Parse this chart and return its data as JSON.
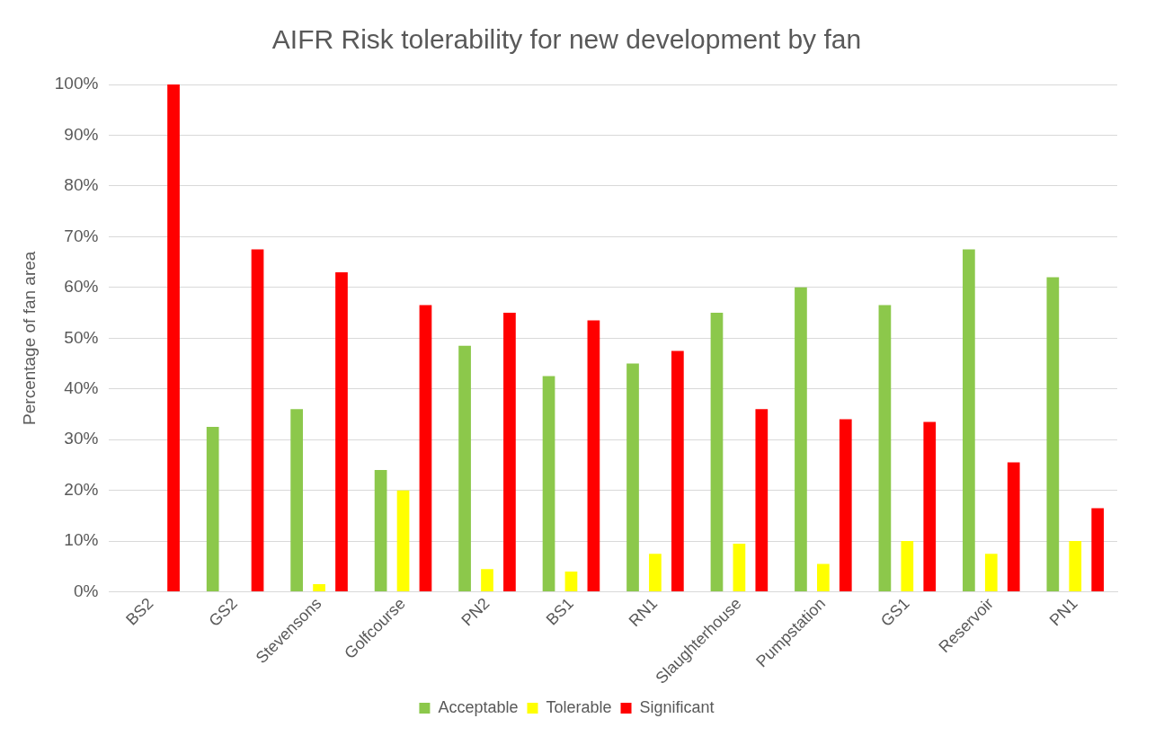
{
  "chart_data": {
    "type": "bar",
    "title": "AIFR Risk tolerability for new development by fan",
    "ylabel": "Percentage of fan area",
    "categories": [
      "BS2",
      "GS2",
      "Stevensons",
      "Golfcourse",
      "PN2",
      "BS1",
      "RN1",
      "Slaughterhouse",
      "Pumpstation",
      "GS1",
      "Reservoir",
      "PN1"
    ],
    "series": [
      {
        "name": "Acceptable",
        "color": "#8cc84b",
        "values": [
          0,
          32.5,
          36,
          24,
          48.5,
          42.5,
          45,
          55,
          60,
          56.5,
          67.5,
          62
        ]
      },
      {
        "name": "Tolerable",
        "color": "#ffff00",
        "values": [
          0,
          0,
          1.5,
          20,
          4.5,
          4,
          7.5,
          9.5,
          5.5,
          10,
          7.5,
          10
        ]
      },
      {
        "name": "Significant",
        "color": "#ff0000",
        "values": [
          100,
          67.5,
          63,
          56.5,
          55,
          53.5,
          47.5,
          36,
          34,
          33.5,
          25.5,
          16.5
        ]
      }
    ],
    "ylim": [
      0,
      100
    ],
    "yticks": [
      {
        "value": 0,
        "label": "0%"
      },
      {
        "value": 10,
        "label": "10%"
      },
      {
        "value": 20,
        "label": "20%"
      },
      {
        "value": 30,
        "label": "30%"
      },
      {
        "value": 40,
        "label": "40%"
      },
      {
        "value": 50,
        "label": "50%"
      },
      {
        "value": 60,
        "label": "60%"
      },
      {
        "value": 70,
        "label": "70%"
      },
      {
        "value": 80,
        "label": "80%"
      },
      {
        "value": 90,
        "label": "90%"
      },
      {
        "value": 100,
        "label": "100%"
      }
    ],
    "grid": "y",
    "legend": "bottom"
  }
}
